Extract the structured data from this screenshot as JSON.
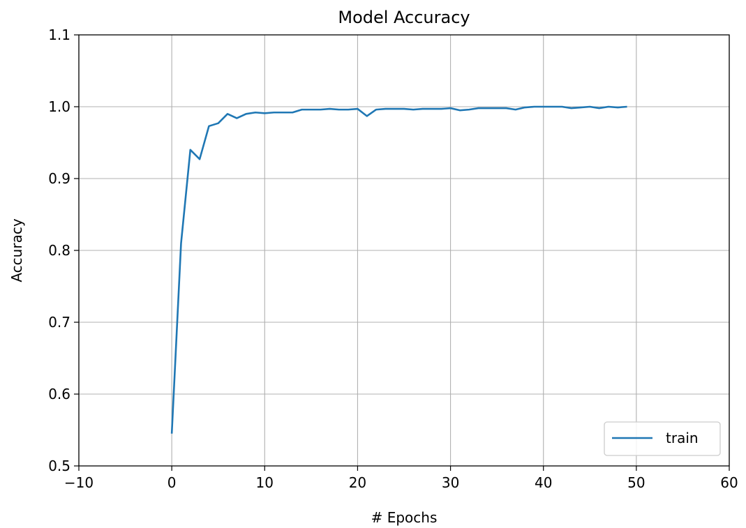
{
  "chart_data": {
    "type": "line",
    "title": "Model Accuracy",
    "xlabel": "# Epochs",
    "ylabel": "Accuracy",
    "xlim": [
      -10,
      60
    ],
    "ylim": [
      0.5,
      1.1
    ],
    "grid": true,
    "legend_position": "lower-right",
    "x_ticks": [
      -10,
      0,
      10,
      20,
      30,
      40,
      50,
      60
    ],
    "x_tick_labels": [
      "−10",
      "0",
      "10",
      "20",
      "30",
      "40",
      "50",
      "60"
    ],
    "y_ticks": [
      0.5,
      0.6,
      0.7,
      0.8,
      0.9,
      1.0,
      1.1
    ],
    "y_tick_labels": [
      "0.5",
      "0.6",
      "0.7",
      "0.8",
      "0.9",
      "1.0",
      "1.1"
    ],
    "x": [
      0,
      1,
      2,
      3,
      4,
      5,
      6,
      7,
      8,
      9,
      10,
      11,
      12,
      13,
      14,
      15,
      16,
      17,
      18,
      19,
      20,
      21,
      22,
      23,
      24,
      25,
      26,
      27,
      28,
      29,
      30,
      31,
      32,
      33,
      34,
      35,
      36,
      37,
      38,
      39,
      40,
      41,
      42,
      43,
      44,
      45,
      46,
      47,
      48,
      49
    ],
    "series": [
      {
        "name": "train",
        "color": "#1f77b4",
        "values": [
          0.545,
          0.81,
          0.94,
          0.927,
          0.973,
          0.977,
          0.99,
          0.984,
          0.99,
          0.992,
          0.991,
          0.992,
          0.992,
          0.992,
          0.996,
          0.996,
          0.996,
          0.997,
          0.996,
          0.996,
          0.997,
          0.987,
          0.996,
          0.997,
          0.997,
          0.997,
          0.996,
          0.997,
          0.997,
          0.997,
          0.998,
          0.995,
          0.996,
          0.998,
          0.998,
          0.998,
          0.998,
          0.996,
          0.999,
          1.0,
          1.0,
          1.0,
          1.0,
          0.998,
          0.999,
          1.0,
          0.998,
          1.0,
          0.999,
          1.0
        ]
      }
    ]
  }
}
